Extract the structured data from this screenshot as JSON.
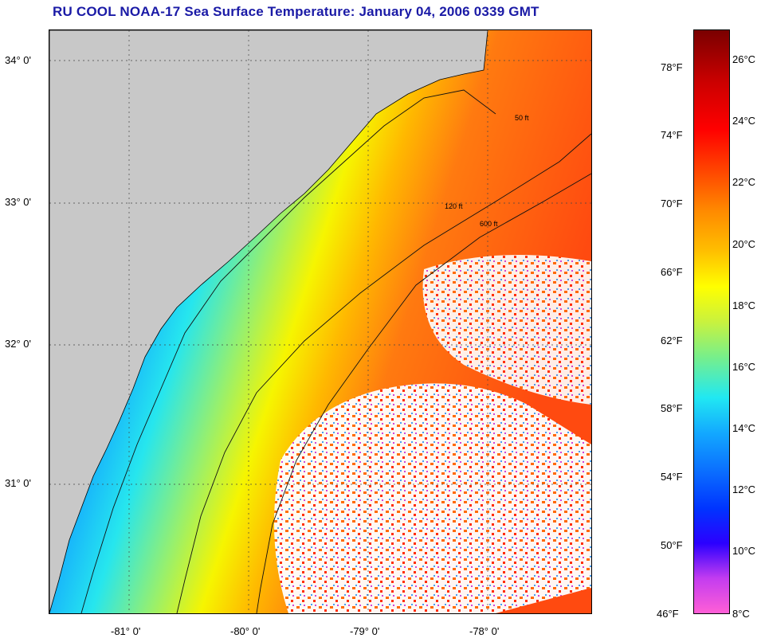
{
  "title": "RU COOL  NOAA-17  Sea Surface Temperature:  January 04, 2006 0339 GMT",
  "map": {
    "lat_labels": [
      "34° 0'",
      "33° 0'",
      "32° 0'",
      "31° 0'"
    ],
    "lon_labels": [
      "-81° 0'",
      "-80° 0'",
      "-79° 0'",
      "-78° 0'"
    ],
    "contour_labels": [
      "50 ft",
      "120 ft",
      "600 ft"
    ],
    "colors": {
      "land": "#c8c8c8",
      "cloud": "#ffffff"
    }
  },
  "colorbar": {
    "fahrenheit_labels": [
      "78°F",
      "74°F",
      "70°F",
      "66°F",
      "62°F",
      "58°F",
      "54°F",
      "50°F",
      "46°F"
    ],
    "celsius_labels": [
      "26°C",
      "24°C",
      "22°C",
      "20°C",
      "18°C",
      "16°C",
      "14°C",
      "12°C",
      "10°C",
      "8°C"
    ],
    "colors": [
      "#ff5fd6",
      "#2b00ff",
      "#0a6bff",
      "#21e8f2",
      "#ffff00",
      "#ff8a00",
      "#ff0000",
      "#7a0000"
    ]
  }
}
